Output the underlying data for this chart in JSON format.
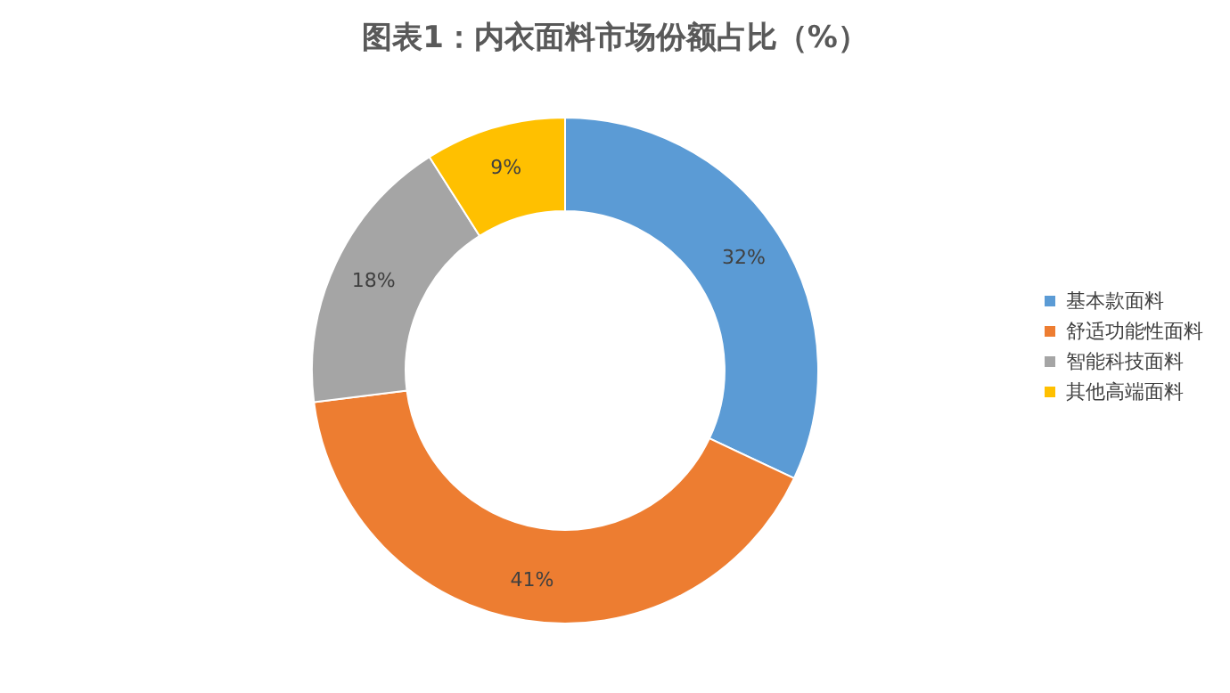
{
  "chart_data": {
    "type": "donut",
    "title": "图表1：内衣面料市场份额占比（%）",
    "categories": [
      "基本款面料",
      "舒适功能性面料",
      "智能科技面料",
      "其他高端面料"
    ],
    "values": [
      32,
      41,
      18,
      9
    ],
    "value_labels": [
      "32%",
      "41%",
      "18%",
      "9%"
    ],
    "colors": [
      "#5b9bd5",
      "#ed7d31",
      "#a5a5a5",
      "#ffc000"
    ],
    "legend": "right"
  }
}
